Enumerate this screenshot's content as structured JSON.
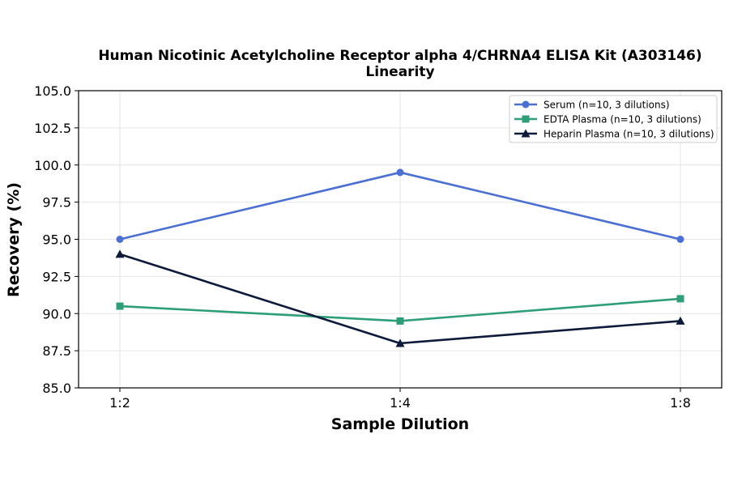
{
  "chart_data": {
    "type": "line",
    "title_line1": "Human Nicotinic Acetylcholine Receptor alpha 4/CHRNA4 ELISA Kit (A303146)",
    "title_line2": "Linearity",
    "xlabel": "Sample Dilution",
    "ylabel": "Recovery (%)",
    "categories": [
      "1:2",
      "1:4",
      "1:8"
    ],
    "ylim": [
      85.0,
      105.0
    ],
    "yticks": [
      "85.0",
      "87.5",
      "90.0",
      "92.5",
      "95.0",
      "97.5",
      "100.0",
      "102.5",
      "105.0"
    ],
    "grid": true,
    "legend_position": "top-right",
    "series": [
      {
        "name": "Serum (n=10, 3 dilutions)",
        "values": [
          95.0,
          99.5,
          95.0
        ],
        "color": "#4c6fd4",
        "marker": "circle"
      },
      {
        "name": "EDTA Plasma (n=10, 3 dilutions)",
        "values": [
          90.5,
          89.5,
          91.0
        ],
        "color": "#2e9e78",
        "marker": "square"
      },
      {
        "name": "Heparin Plasma (n=10, 3 dilutions)",
        "values": [
          94.0,
          88.0,
          89.5
        ],
        "color": "#0d1a3a",
        "marker": "triangle"
      }
    ]
  }
}
